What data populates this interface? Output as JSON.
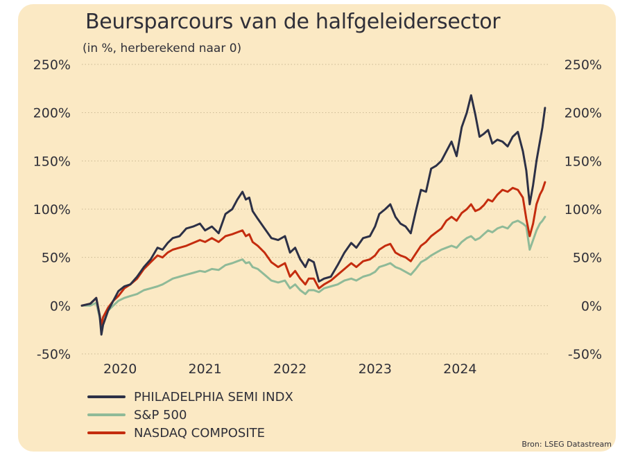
{
  "title": "Beursparcours van de halfgeleidersector",
  "subtitle": "(in %, herberekend naar 0)",
  "source": "Bron: LSEG Datastream",
  "colors": {
    "background": "#fbe9c4",
    "sox": "#2c3046",
    "sp500": "#8fba98",
    "nasdaq": "#c42c0e",
    "grid": "#c9b892",
    "text": "#2f2f38"
  },
  "chart_data": {
    "type": "line",
    "title": "Beursparcours van de halfgeleidersector",
    "ylabel": "",
    "xlabel": "",
    "ylim": [
      -50,
      250
    ],
    "xlim": [
      2019.55,
      2025.05
    ],
    "yticks": [
      -50,
      0,
      50,
      100,
      150,
      200,
      250
    ],
    "ytick_labels": [
      "-50%",
      "0%",
      "50%",
      "100%",
      "150%",
      "200%",
      "250%"
    ],
    "xticks": [
      2020,
      2021,
      2022,
      2023,
      2024
    ],
    "xtick_labels": [
      "2020",
      "2021",
      "2022",
      "2023",
      "2024"
    ],
    "y_axis_both_sides": true,
    "grid": "horizontal dotted",
    "legend_position": "bottom-left",
    "series": [
      {
        "name": "PHILADELPHIA SEMI INDX",
        "color": "#2c3046",
        "x": [
          2019.55,
          2019.65,
          2019.72,
          2019.76,
          2019.78,
          2019.8,
          2019.86,
          2019.92,
          2019.98,
          2020.05,
          2020.12,
          2020.2,
          2020.28,
          2020.36,
          2020.44,
          2020.5,
          2020.56,
          2020.62,
          2020.7,
          2020.78,
          2020.86,
          2020.94,
          2021.0,
          2021.08,
          2021.16,
          2021.24,
          2021.32,
          2021.38,
          2021.44,
          2021.48,
          2021.52,
          2021.56,
          2021.62,
          2021.7,
          2021.78,
          2021.86,
          2021.94,
          2022.0,
          2022.06,
          2022.12,
          2022.18,
          2022.22,
          2022.28,
          2022.34,
          2022.4,
          2022.48,
          2022.56,
          2022.64,
          2022.72,
          2022.78,
          2022.86,
          2022.94,
          2023.0,
          2023.05,
          2023.12,
          2023.18,
          2023.24,
          2023.3,
          2023.36,
          2023.42,
          2023.48,
          2023.54,
          2023.6,
          2023.66,
          2023.72,
          2023.78,
          2023.84,
          2023.9,
          2023.96,
          2024.02,
          2024.08,
          2024.13,
          2024.18,
          2024.23,
          2024.28,
          2024.33,
          2024.38,
          2024.44,
          2024.5,
          2024.56,
          2024.62,
          2024.68,
          2024.74,
          2024.78,
          2024.82,
          2024.86,
          2024.9,
          2024.94,
          2024.97,
          2025.0
        ],
        "values": [
          0,
          2,
          8,
          -10,
          -30,
          -20,
          -5,
          5,
          15,
          20,
          22,
          30,
          40,
          48,
          60,
          58,
          65,
          70,
          72,
          80,
          82,
          85,
          78,
          82,
          75,
          95,
          100,
          110,
          118,
          110,
          112,
          98,
          90,
          80,
          70,
          68,
          72,
          55,
          60,
          48,
          40,
          48,
          45,
          25,
          28,
          30,
          42,
          55,
          65,
          60,
          70,
          72,
          82,
          95,
          100,
          105,
          92,
          85,
          82,
          75,
          98,
          120,
          118,
          142,
          145,
          150,
          160,
          170,
          155,
          185,
          200,
          218,
          198,
          175,
          178,
          182,
          168,
          172,
          170,
          165,
          175,
          180,
          160,
          140,
          105,
          125,
          150,
          170,
          185,
          205
        ]
      },
      {
        "name": "S&P 500",
        "color": "#8fba98",
        "x": [
          2019.55,
          2019.65,
          2019.72,
          2019.76,
          2019.78,
          2019.8,
          2019.86,
          2019.92,
          2019.98,
          2020.05,
          2020.12,
          2020.2,
          2020.28,
          2020.36,
          2020.44,
          2020.5,
          2020.56,
          2020.62,
          2020.7,
          2020.78,
          2020.86,
          2020.94,
          2021.0,
          2021.08,
          2021.16,
          2021.24,
          2021.32,
          2021.38,
          2021.44,
          2021.48,
          2021.52,
          2021.56,
          2021.62,
          2021.7,
          2021.78,
          2021.86,
          2021.94,
          2022.0,
          2022.06,
          2022.12,
          2022.18,
          2022.22,
          2022.28,
          2022.34,
          2022.4,
          2022.48,
          2022.56,
          2022.64,
          2022.72,
          2022.78,
          2022.86,
          2022.94,
          2023.0,
          2023.05,
          2023.12,
          2023.18,
          2023.24,
          2023.3,
          2023.36,
          2023.42,
          2023.48,
          2023.54,
          2023.6,
          2023.66,
          2023.72,
          2023.78,
          2023.84,
          2023.9,
          2023.96,
          2024.02,
          2024.08,
          2024.13,
          2024.18,
          2024.23,
          2024.28,
          2024.33,
          2024.38,
          2024.44,
          2024.5,
          2024.56,
          2024.62,
          2024.68,
          2024.74,
          2024.78,
          2024.82,
          2024.86,
          2024.9,
          2024.94,
          2024.97,
          2025.0
        ],
        "values": [
          0,
          0,
          3,
          -12,
          -22,
          -15,
          -5,
          0,
          5,
          8,
          10,
          12,
          16,
          18,
          20,
          22,
          25,
          28,
          30,
          32,
          34,
          36,
          35,
          38,
          37,
          42,
          44,
          46,
          48,
          44,
          45,
          40,
          38,
          32,
          26,
          24,
          26,
          18,
          22,
          16,
          12,
          16,
          16,
          14,
          18,
          20,
          22,
          26,
          28,
          26,
          30,
          32,
          35,
          40,
          42,
          44,
          40,
          38,
          35,
          32,
          38,
          45,
          48,
          52,
          55,
          58,
          60,
          62,
          60,
          66,
          70,
          72,
          68,
          70,
          74,
          78,
          76,
          80,
          82,
          80,
          86,
          88,
          85,
          82,
          58,
          68,
          78,
          85,
          88,
          92
        ]
      },
      {
        "name": "NASDAQ COMPOSITE",
        "color": "#c42c0e",
        "x": [
          2019.55,
          2019.65,
          2019.72,
          2019.76,
          2019.78,
          2019.8,
          2019.86,
          2019.92,
          2019.98,
          2020.05,
          2020.12,
          2020.2,
          2020.28,
          2020.36,
          2020.44,
          2020.5,
          2020.56,
          2020.62,
          2020.7,
          2020.78,
          2020.86,
          2020.94,
          2021.0,
          2021.08,
          2021.16,
          2021.24,
          2021.32,
          2021.38,
          2021.44,
          2021.48,
          2021.52,
          2021.56,
          2021.62,
          2021.7,
          2021.78,
          2021.86,
          2021.94,
          2022.0,
          2022.06,
          2022.12,
          2022.18,
          2022.22,
          2022.28,
          2022.34,
          2022.4,
          2022.48,
          2022.56,
          2022.64,
          2022.72,
          2022.78,
          2022.86,
          2022.94,
          2023.0,
          2023.05,
          2023.12,
          2023.18,
          2023.24,
          2023.3,
          2023.36,
          2023.42,
          2023.48,
          2023.54,
          2023.6,
          2023.66,
          2023.72,
          2023.78,
          2023.84,
          2023.9,
          2023.96,
          2024.02,
          2024.08,
          2024.13,
          2024.18,
          2024.23,
          2024.28,
          2024.33,
          2024.38,
          2024.44,
          2024.5,
          2024.56,
          2024.62,
          2024.68,
          2024.74,
          2024.78,
          2024.82,
          2024.86,
          2024.9,
          2024.94,
          2024.97,
          2025.0
        ],
        "values": [
          0,
          2,
          8,
          -10,
          -20,
          -12,
          -2,
          5,
          10,
          18,
          22,
          28,
          38,
          45,
          52,
          50,
          55,
          58,
          60,
          62,
          65,
          68,
          66,
          70,
          66,
          72,
          74,
          76,
          78,
          72,
          74,
          66,
          62,
          55,
          45,
          40,
          44,
          30,
          36,
          28,
          22,
          28,
          28,
          18,
          22,
          26,
          32,
          38,
          44,
          40,
          46,
          48,
          52,
          58,
          62,
          64,
          55,
          52,
          50,
          46,
          54,
          62,
          66,
          72,
          76,
          80,
          88,
          92,
          88,
          96,
          100,
          105,
          98,
          100,
          104,
          110,
          108,
          115,
          120,
          118,
          122,
          120,
          112,
          90,
          72,
          85,
          105,
          115,
          120,
          128
        ]
      }
    ]
  }
}
